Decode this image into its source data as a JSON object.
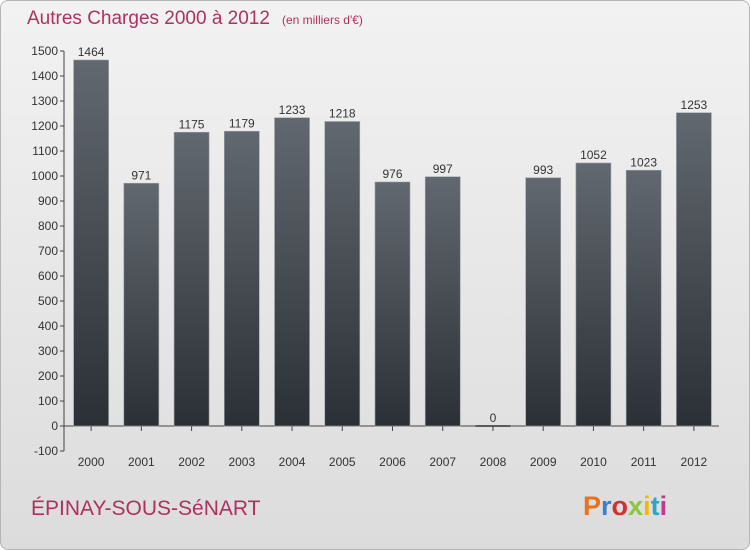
{
  "title": "Autres Charges 2000 à 2012",
  "subtitle": "(en milliers d'€)",
  "city": "ÉPINAY-SOUS-SéNART",
  "logo": {
    "text": "Proxiti",
    "colors": [
      "#e8731a",
      "#3a7fd0",
      "#d4302f",
      "#8cc63f",
      "#f5b800",
      "#2aa6c9",
      "#c23a8f"
    ]
  },
  "colors": {
    "title": "#b03060",
    "bar_top": "#62686f",
    "bar_bottom": "#2b3036",
    "axis": "#444444"
  },
  "chart_data": {
    "type": "bar",
    "categories": [
      "2000",
      "2001",
      "2002",
      "2003",
      "2004",
      "2005",
      "2006",
      "2007",
      "2008",
      "2009",
      "2010",
      "2011",
      "2012"
    ],
    "values": [
      1464,
      971,
      1175,
      1179,
      1233,
      1218,
      976,
      997,
      0,
      993,
      1052,
      1023,
      1253
    ],
    "data_labels": [
      "1464",
      "971",
      "1175",
      "1179",
      "1233",
      "1218",
      "976",
      "997",
      "0",
      "993",
      "1052",
      "1023",
      "1253"
    ],
    "ylim": [
      -100,
      1500
    ],
    "yticks": [
      -100,
      0,
      100,
      200,
      300,
      400,
      500,
      600,
      700,
      800,
      900,
      1000,
      1100,
      1200,
      1300,
      1400,
      1500
    ],
    "grid": false,
    "legend": "none"
  }
}
